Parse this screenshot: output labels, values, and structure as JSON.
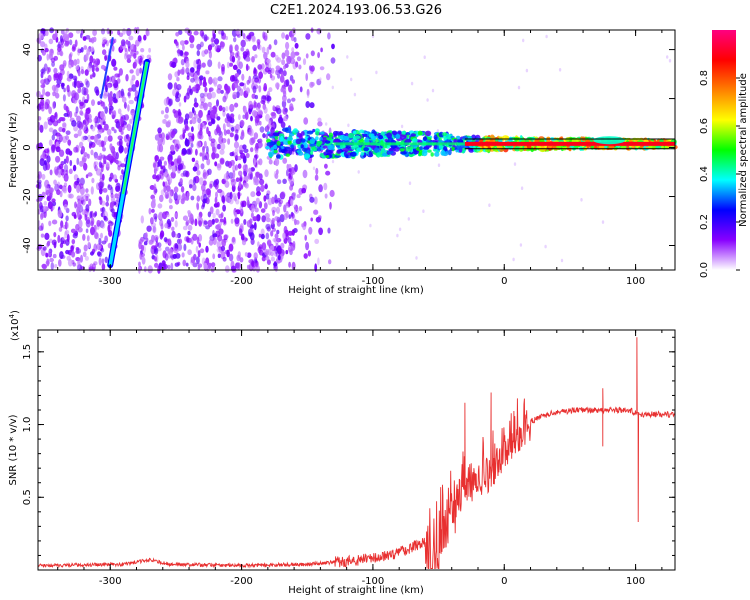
{
  "title": "C2E1.2024.193.06.53.G26",
  "chart_data": [
    {
      "type": "heatmap",
      "xlabel": "Height of straight line (km)",
      "ylabel": "Frequency (Hz)",
      "xlim": [
        -355,
        130
      ],
      "ylim": [
        -50,
        48
      ],
      "x_ticks": [
        -300,
        -200,
        -100,
        0,
        100
      ],
      "y_ticks": [
        -40,
        -20,
        0,
        20,
        40
      ],
      "colorbar": {
        "label": "Normalized spectral amplitude",
        "range": [
          0,
          1
        ],
        "ticks": [
          "0.0",
          "0.2",
          "0.4",
          "0.6",
          "0.8"
        ],
        "colors": [
          "#ffffff",
          "#8800ff",
          "#0000ff",
          "#00ffff",
          "#00ff00",
          "#ffff00",
          "#ff8000",
          "#ff0000",
          "#ff0080"
        ]
      },
      "features": {
        "diagonal_line": {
          "x_start": -300,
          "freq_start": -48,
          "x_end": -272,
          "freq_end": 35
        },
        "central_band": {
          "x_start": -180,
          "x_end": 130,
          "freq_center": 1.5,
          "freq_halfwidth_start": 6,
          "freq_halfwidth_end": 2
        },
        "noise_region": {
          "x_start": -355,
          "x_end": -150
        },
        "reference_lines_hz": [
          3.5,
          -0.5
        ]
      }
    },
    {
      "type": "line",
      "xlabel": "Height of straight line (km)",
      "ylabel": "SNR (10 * v/v)",
      "y_multiplier": "(x10",
      "y_multiplier_exp": "4",
      "xlim": [
        -355,
        130
      ],
      "ylim": [
        0,
        1.65
      ],
      "x_ticks": [
        -300,
        -200,
        -100,
        0,
        100
      ],
      "y_ticks": [
        0.5,
        1.0,
        1.5
      ],
      "y_tick_labels": [
        "0.5",
        "1.0",
        "1.5"
      ],
      "series": [
        {
          "color": "#e83030",
          "envelope_x": [
            -355,
            -290,
            -270,
            -255,
            -200,
            -150,
            -120,
            -100,
            -80,
            -60,
            -50,
            -40,
            -30,
            -20,
            -10,
            0,
            10,
            20,
            30,
            40,
            60,
            80,
            90,
            95,
            100,
            105,
            110,
            130
          ],
          "envelope_y": [
            0.03,
            0.04,
            0.07,
            0.04,
            0.03,
            0.04,
            0.06,
            0.08,
            0.12,
            0.2,
            0.35,
            0.55,
            0.7,
            0.75,
            0.78,
            0.9,
            0.98,
            1.02,
            1.06,
            1.09,
            1.1,
            1.1,
            1.1,
            1.1,
            1.08,
            1.07,
            1.07,
            1.07
          ],
          "spikes": [
            {
              "x": -30,
              "y": 1.15
            },
            {
              "x": -10,
              "y": 1.22
            },
            {
              "x": 10,
              "y": 1.18
            },
            {
              "x": 75,
              "y": 1.25
            },
            {
              "x": 75,
              "y": 0.85
            },
            {
              "x": 101,
              "y": 1.6
            },
            {
              "x": 102,
              "y": 0.33
            }
          ]
        }
      ]
    }
  ]
}
